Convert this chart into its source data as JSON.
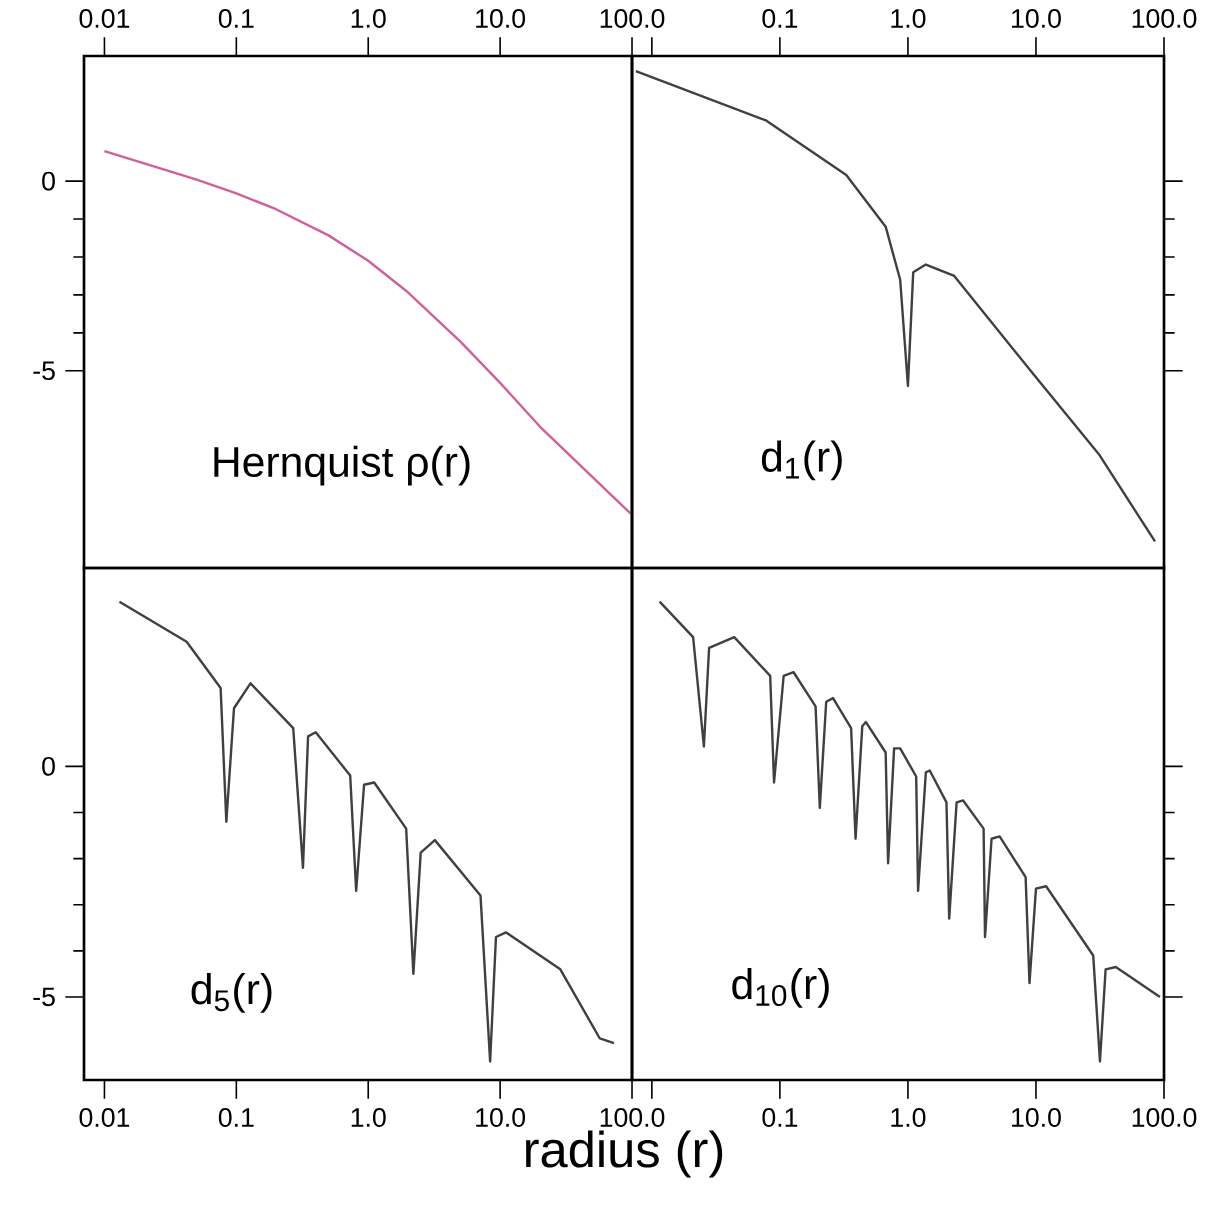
{
  "chart_data": [
    {
      "type": "line",
      "title": "Hernquist ρ(r)",
      "log": "x",
      "xlim": [
        0.007,
        100
      ],
      "xticks": [
        {
          "value": 0.01,
          "label": "0.01"
        },
        {
          "value": 0.1,
          "label": "0.1"
        },
        {
          "value": 1,
          "label": "1.0"
        },
        {
          "value": 10,
          "label": "10.0"
        },
        {
          "value": 100,
          "label": "100.0"
        }
      ],
      "ylim": [
        -10.2,
        3.3
      ],
      "yticks": [
        -5,
        0
      ],
      "series": [
        {
          "color": "#d0609a",
          "x": [
            0.01,
            0.02,
            0.05,
            0.1,
            0.2,
            0.5,
            1,
            2,
            5,
            10,
            20,
            50,
            100
          ],
          "values": [
            0.79,
            0.47,
            0.04,
            -0.32,
            -0.74,
            -1.43,
            -2.1,
            -2.93,
            -4.23,
            -5.32,
            -6.47,
            -7.8,
            -8.8
          ]
        }
      ]
    },
    {
      "type": "line",
      "title": "d$_{1}$(r)",
      "log": "x",
      "xlim": [
        0.007,
        100
      ],
      "xticks": [
        {
          "value": 0.01,
          "label": null
        },
        {
          "value": 0.1,
          "label": "0.1"
        },
        {
          "value": 1,
          "label": "1.0"
        },
        {
          "value": 10,
          "label": "10.0"
        },
        {
          "value": 100,
          "label": "100.0"
        }
      ],
      "ylim": [
        -10.2,
        3.3
      ],
      "yticks": [
        -5,
        0
      ],
      "tick_labels": "x",
      "series": [
        {
          "color": "#404040",
          "x": [
            0.0075,
            0.078,
            0.33,
            0.67,
            0.87,
            1.0,
            1.1,
            1.38,
            2.3,
            9.6,
            31,
            85
          ],
          "values": [
            2.9,
            1.6,
            0.16,
            -1.2,
            -2.6,
            -5.4,
            -2.4,
            -2.2,
            -2.5,
            -5.1,
            -7.2,
            -9.5
          ]
        }
      ]
    },
    {
      "type": "line",
      "title": "d$_{5}$(r)",
      "xlabel": "radius (r)",
      "log": "x",
      "xlim": [
        0.007,
        100
      ],
      "xticks": [
        {
          "value": 0.01,
          "label": "0.01"
        },
        {
          "value": 0.1,
          "label": "0.1"
        },
        {
          "value": 1,
          "label": "1.0"
        },
        {
          "value": 10,
          "label": "10.0"
        },
        {
          "value": 100,
          "label": "100.0"
        }
      ],
      "ylim": [
        -6.8,
        4.3
      ],
      "yticks": [
        -5,
        0
      ],
      "series": [
        {
          "color": "#404040",
          "x": [
            0.013,
            0.042,
            0.076,
            0.084,
            0.096,
            0.128,
            0.27,
            0.32,
            0.35,
            0.4,
            0.73,
            0.81,
            0.93,
            1.11,
            1.94,
            2.2,
            2.5,
            3.2,
            7.1,
            8.4,
            9.3,
            11.1,
            28.6,
            57,
            73
          ],
          "values": [
            3.57,
            2.7,
            1.7,
            -1.2,
            1.26,
            1.8,
            0.83,
            -2.2,
            0.65,
            0.74,
            -0.2,
            -2.7,
            -0.4,
            -0.35,
            -1.35,
            -4.5,
            -1.87,
            -1.6,
            -2.8,
            -6.4,
            -3.7,
            -3.6,
            -4.4,
            -5.9,
            -6.0
          ]
        }
      ]
    },
    {
      "type": "line",
      "title": "d$_{10}$(r)",
      "log": "x",
      "xlim": [
        0.007,
        100
      ],
      "xticks": [
        {
          "value": 0.01,
          "label": null
        },
        {
          "value": 0.1,
          "label": "0.1"
        },
        {
          "value": 1,
          "label": "1.0"
        },
        {
          "value": 10,
          "label": "10.0"
        },
        {
          "value": 100,
          "label": "100.0"
        }
      ],
      "ylim": [
        -6.8,
        4.3
      ],
      "yticks": [
        -5,
        0
      ],
      "tick_labels": "x",
      "series": [
        {
          "color": "#404040",
          "x": [
            0.0115,
            0.021,
            0.0255,
            0.028,
            0.044,
            0.084,
            0.09,
            0.107,
            0.128,
            0.19,
            0.205,
            0.23,
            0.26,
            0.36,
            0.39,
            0.44,
            0.47,
            0.67,
            0.7,
            0.78,
            0.87,
            1.16,
            1.2,
            1.38,
            1.48,
            2.0,
            2.1,
            2.4,
            2.7,
            3.9,
            4.0,
            4.5,
            5.2,
            8.3,
            8.9,
            10,
            12,
            28,
            31.6,
            35,
            42,
            93
          ],
          "values": [
            3.57,
            2.8,
            0.43,
            2.57,
            2.8,
            1.96,
            -0.35,
            1.96,
            2.04,
            1.3,
            -0.9,
            1.4,
            1.48,
            0.83,
            -1.57,
            0.87,
            0.96,
            0.3,
            -2.1,
            0.39,
            0.39,
            -0.22,
            -2.7,
            -0.13,
            -0.09,
            -0.78,
            -3.3,
            -0.78,
            -0.74,
            -1.35,
            -3.7,
            -1.57,
            -1.52,
            -2.4,
            -4.7,
            -2.65,
            -2.6,
            -4.1,
            -6.4,
            -4.4,
            -4.35,
            -5.0
          ]
        }
      ]
    }
  ]
}
